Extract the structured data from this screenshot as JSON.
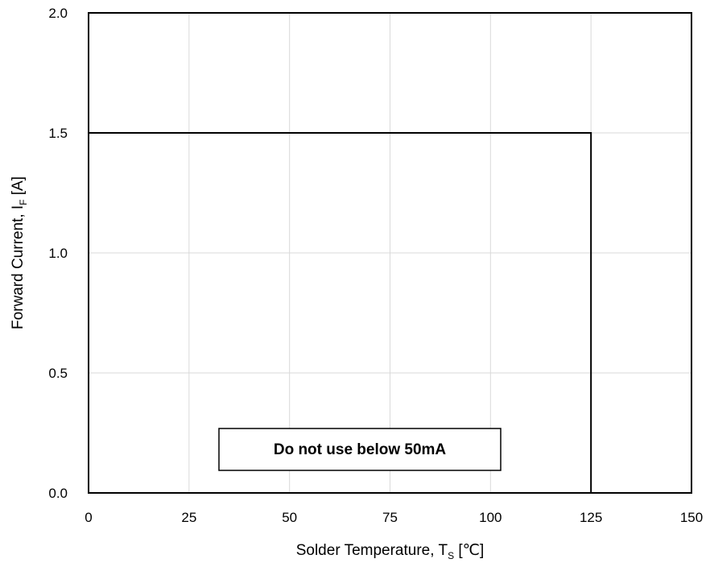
{
  "chart_data": {
    "type": "line",
    "title": "",
    "x": [
      0,
      125,
      125
    ],
    "series": [
      {
        "values": [
          1.5,
          1.5,
          0.0
        ]
      }
    ],
    "xlim": [
      0,
      150
    ],
    "ylim": [
      0.0,
      2.0
    ],
    "xticks": [
      "0",
      "25",
      "50",
      "75",
      "100",
      "125",
      "150"
    ],
    "yticks": [
      "0.0",
      "0.5",
      "1.0",
      "1.5",
      "2.0"
    ],
    "xlabel": {
      "main": "Solder Temperature, T",
      "sub": "S",
      "unit": " [℃]"
    },
    "ylabel": {
      "main": "Forward Current, I",
      "sub": "F",
      "unit": " [A]"
    },
    "grid": true,
    "annotation": "Do not use below 50mA",
    "colors": {
      "line": "#000000",
      "grid": "#d9d9d9",
      "background": "#ffffff"
    }
  }
}
